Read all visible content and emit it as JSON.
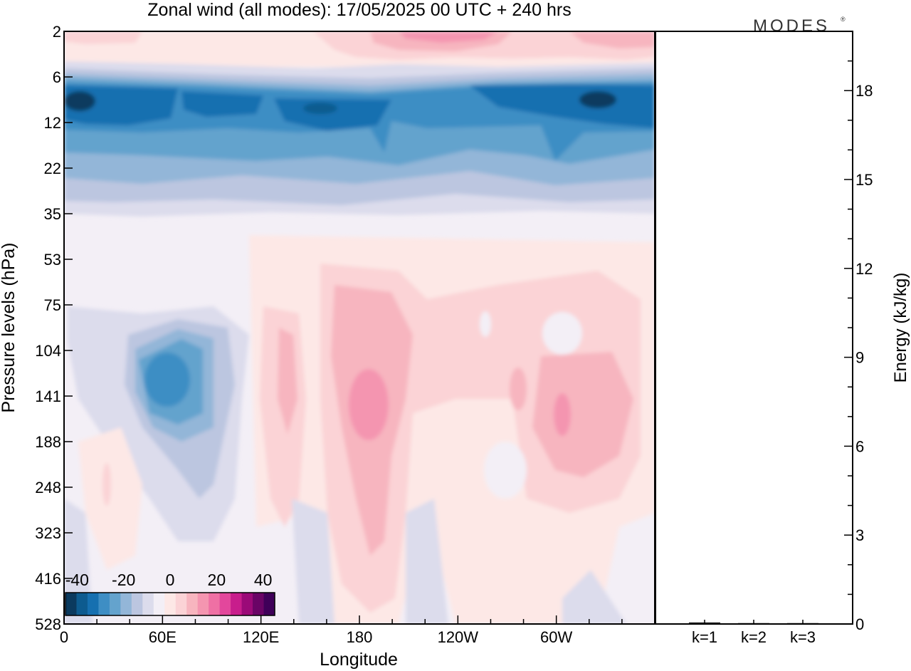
{
  "chart_data": [
    {
      "type": "heatmap",
      "title": "Zonal wind (all modes):  17/05/2025  00 UTC  + 240 hrs",
      "xlabel": "Longitude",
      "ylabel": "Pressure levels (hPa)",
      "x_ticks": [
        "0",
        "60E",
        "120E",
        "180",
        "120W",
        "60W"
      ],
      "x_tick_degrees": [
        0,
        60,
        120,
        180,
        240,
        300
      ],
      "xlim": [
        0,
        360
      ],
      "y_ticks": [
        "2",
        "6",
        "12",
        "22",
        "35",
        "53",
        "75",
        "104",
        "141",
        "188",
        "248",
        "323",
        "416",
        "528"
      ],
      "y_scale": "categorical model levels, top to bottom",
      "colorbar": {
        "tick_labels": [
          "-40",
          "-20",
          "0",
          "20",
          "40"
        ],
        "tick_values": [
          -40,
          -20,
          0,
          20,
          40
        ],
        "range": [
          -45,
          45
        ],
        "step": 5,
        "colors": [
          "#0b3a5e",
          "#0d5b8f",
          "#1670b0",
          "#3e8ec4",
          "#64a3cd",
          "#93b6d8",
          "#bcc6e0",
          "#dcdcec",
          "#f3eff6",
          "#fde8e6",
          "#fbd3d6",
          "#f7b5bf",
          "#f495b0",
          "#ef70a4",
          "#e3479c",
          "#c81d8c",
          "#9b0a78",
          "#6a0466",
          "#3f0059"
        ],
        "location": "bottom-left"
      },
      "qualitative_features": [
        {
          "region": "2-6 hPa",
          "value_approx": 10,
          "note": "weak westerlies, stronger near 150W-30E"
        },
        {
          "region": "8-22 hPa, all longitudes",
          "value_approx": -30,
          "note": "strong easterly band, core ~ -40"
        },
        {
          "region": "22-35 hPa",
          "value_approx": -10,
          "note": "weakening easterlies"
        },
        {
          "region": "60E, 104-188 hPa",
          "value_approx": -30,
          "note": "easterly core"
        },
        {
          "region": "180, 104-188 hPa",
          "value_approx": 20,
          "note": "westerly core"
        },
        {
          "region": "60W, 141 hPa",
          "value_approx": 20,
          "note": "westerly core"
        },
        {
          "region": "120E, 104-141 hPa",
          "value_approx": 15,
          "note": "westerly maximum"
        }
      ]
    },
    {
      "type": "bar",
      "categories": [
        "k=1",
        "k=2",
        "k=3"
      ],
      "values": [
        0.05,
        0.03,
        0.03
      ],
      "ylabel": "Energy (kJ/kg)",
      "y_ticks": [
        0,
        3,
        6,
        9,
        12,
        15,
        18
      ],
      "ylim": [
        0,
        20
      ]
    }
  ],
  "logo_text": "MODES",
  "logo_mark": "®"
}
